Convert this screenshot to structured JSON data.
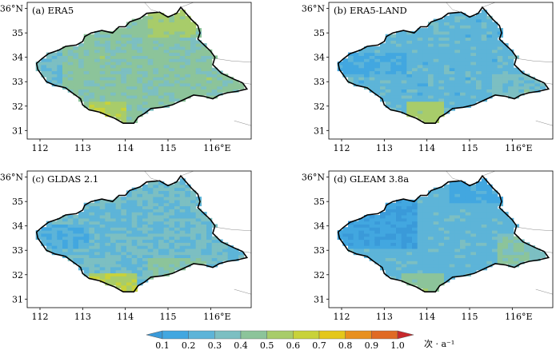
{
  "panels": [
    {
      "id": "a",
      "title": "(a) ERA5",
      "scheme": "era5"
    },
    {
      "id": "b",
      "title": "(b) ERA5-LAND",
      "scheme": "era5land"
    },
    {
      "id": "c",
      "title": "(c) GLDAS 2.1",
      "scheme": "gldas"
    },
    {
      "id": "d",
      "title": "(d) GLEAM 3.8a",
      "scheme": "gleam"
    }
  ],
  "axes": {
    "x_ticks": [
      {
        "value": 112,
        "label": "112"
      },
      {
        "value": 113,
        "label": "113"
      },
      {
        "value": 114,
        "label": "114"
      },
      {
        "value": 115,
        "label": "115"
      },
      {
        "value": 116,
        "label": "116°E"
      }
    ],
    "y_ticks": [
      {
        "value": 31,
        "label": "31"
      },
      {
        "value": 32,
        "label": "32"
      },
      {
        "value": 33,
        "label": "33"
      },
      {
        "value": 34,
        "label": "34"
      },
      {
        "value": 35,
        "label": "35"
      },
      {
        "value": 36,
        "label": "36°N"
      }
    ],
    "lon_range": [
      111.7,
      116.95
    ],
    "lat_range": [
      30.65,
      36.25
    ]
  },
  "colorbar": {
    "tick_labels": [
      "0.1",
      "0.2",
      "0.3",
      "0.4",
      "0.5",
      "0.6",
      "0.7",
      "0.8",
      "0.9",
      "1.0"
    ],
    "unit_label": "次 · a⁻¹",
    "colors": [
      "#3a9ad9",
      "#42a7e0",
      "#5db4d8",
      "#7cbfc2",
      "#8cc49a",
      "#a8cc6a",
      "#c8d23a",
      "#e4c71a",
      "#e8901e",
      "#e06a24",
      "#c8282c"
    ]
  }
}
